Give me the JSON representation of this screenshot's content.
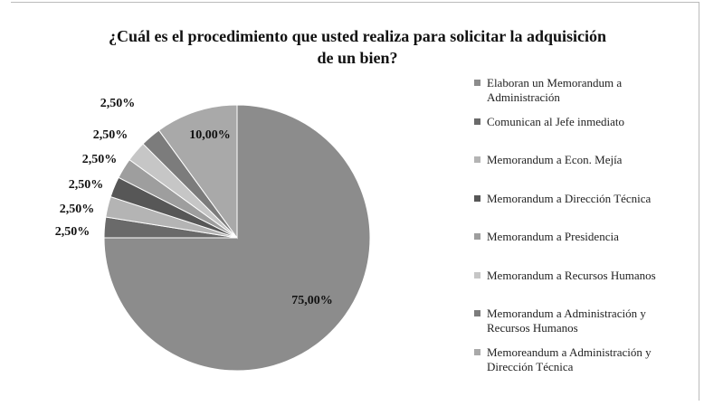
{
  "chart_data": {
    "type": "pie",
    "title": "¿Cuál es el procedimiento que usted realiza para solicitar la adquisición de un bien?",
    "categories": [
      "Elaboran un Memorandum a Administración",
      "Comunican al Jefe inmediato",
      "Memorandum a Econ. Mejía",
      "Memorandum a Dirección Técnica",
      "Memorandum a Presidencia",
      "Memorandum a Recursos Humanos",
      "Memorandum a Administración y Recursos Humanos",
      "Memoreandum a Administración y Dirección Técnica"
    ],
    "values": [
      75,
      2.5,
      2.5,
      2.5,
      2.5,
      2.5,
      2.5,
      10
    ],
    "value_labels": [
      "75,00%",
      "2,50%",
      "2,50%",
      "2,50%",
      "2,50%",
      "2,50%",
      "2,50%",
      "10,00%"
    ],
    "colors": [
      "#8c8c8c",
      "#6a6a6a",
      "#b4b4b4",
      "#575757",
      "#9e9e9e",
      "#c6c6c6",
      "#7c7c7c",
      "#a9a9a9"
    ],
    "legend": "right"
  }
}
